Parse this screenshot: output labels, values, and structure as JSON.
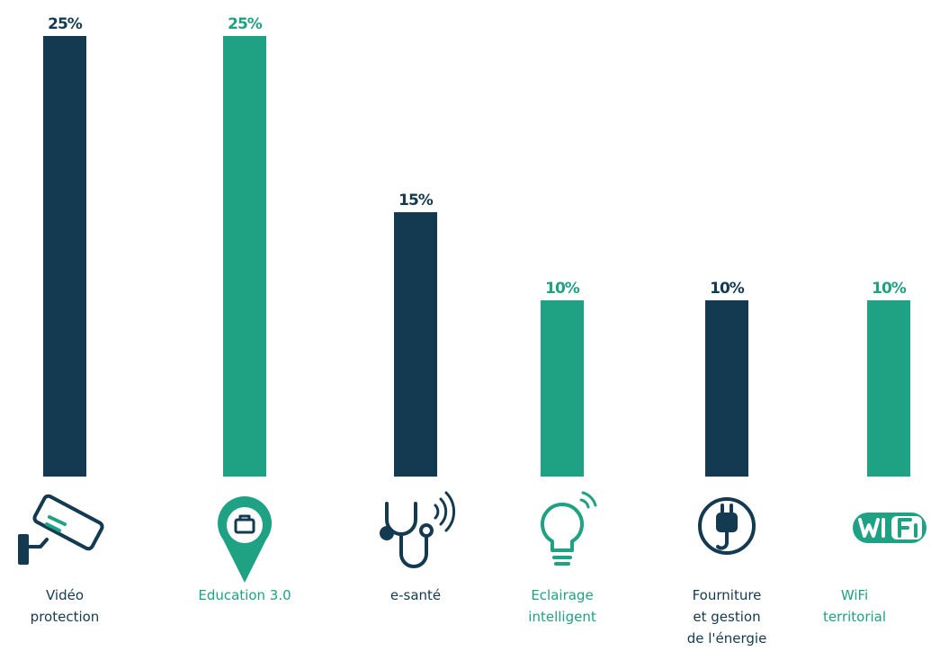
{
  "chart_data": {
    "type": "bar",
    "categories": [
      "Vidéo\nprotection",
      "Education 3.0",
      "e-santé",
      "Eclairage\nintelligent",
      "Fourniture\net gestion\nde l'énergie",
      "WiFi\nterritorial"
    ],
    "values": [
      25,
      25,
      15,
      10,
      10,
      10
    ],
    "value_labels": [
      "25%",
      "25%",
      "15%",
      "10%",
      "10%",
      "10%"
    ],
    "colors": [
      "#143a52",
      "#1fa183",
      "#143a52",
      "#1fa183",
      "#143a52",
      "#1fa183"
    ],
    "ylim": [
      0,
      25
    ]
  }
}
